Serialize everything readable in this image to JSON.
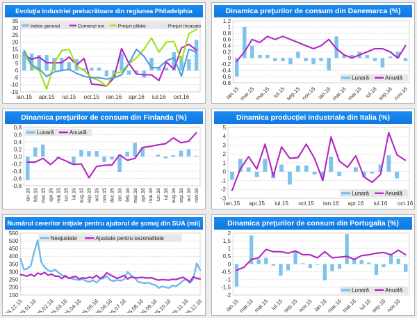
{
  "palette": {
    "title_bar_blue": "#0f79e0",
    "page_bg": "#ECECEC",
    "panel_bg": "#FFFFFF",
    "legend_bg": "#E7E7E7",
    "bar_blue": "#7FC2EC",
    "line_blue": "#4F9BD9",
    "magenta": "#B026C0",
    "lime_green": "#A2DF12",
    "pale_mint": "#C9F0DF"
  },
  "chart_data": [
    {
      "id": "philadelphia",
      "type": "bar",
      "title": "Evoluţia industriei prelucrătoare din regiunea Philadelphia",
      "ylim": [
        -15,
        35
      ],
      "ystep": 5,
      "y_ticks": [
        "35",
        "30",
        "25",
        "20",
        "15",
        "10",
        "5",
        "0",
        "-5",
        "-10",
        "-15"
      ],
      "x_label_rotation": 0,
      "x_ticks": {
        "indices": [
          0,
          3,
          6,
          9,
          12,
          15,
          18,
          21
        ],
        "labels": [
          "ian.15",
          "apr.15",
          "iul.15",
          "oct.15",
          "ian.16",
          "apr.16",
          "iul.16",
          "oct.16"
        ]
      },
      "legend_position": "top-strip",
      "series": [
        {
          "name": "Indice general",
          "type": "bar",
          "color": "#7FC2EC",
          "values": [
            13.5,
            12,
            11,
            11,
            9,
            9,
            6,
            8,
            1.5,
            2,
            2,
            -4,
            -4,
            12,
            -3,
            -2,
            -5,
            9,
            2,
            2,
            13,
            10,
            8,
            21.5
          ]
        },
        {
          "name": "Comenzi noi",
          "type": "line",
          "color": "#B026C0",
          "values": [
            11,
            8,
            9.5,
            5.5,
            5.5,
            5.5,
            9.5,
            4,
            8.5,
            -9.5,
            -10,
            -11,
            -5,
            15.5,
            5,
            -2.5,
            -3,
            -3,
            -7,
            6,
            1,
            16,
            18.5,
            14.5
          ]
        },
        {
          "name": "Preţuri plătite",
          "type": "line",
          "color": "#A2DF12",
          "values": [
            12,
            3,
            0,
            -13,
            5,
            14,
            15,
            3,
            0,
            -5,
            -7,
            -11,
            -2,
            -1,
            5,
            9,
            15,
            23,
            13,
            20,
            20.5,
            7,
            26,
            29
          ]
        },
        {
          "name": "Preţuri încasate",
          "type": "line",
          "color": "#4F9BD9",
          "legend_color": "#C9F0DF",
          "values": [
            14,
            4,
            1,
            -4,
            -1,
            0,
            1,
            -2,
            -4,
            -5,
            -5,
            -6,
            -5,
            -3,
            5,
            15,
            10,
            2,
            2,
            7,
            9,
            -4,
            15,
            13
          ]
        }
      ]
    },
    {
      "id": "danemarca",
      "type": "bar",
      "title": "Dinamica preţurilor de consum din Danemarca (%)",
      "ylim": [
        -0.8,
        1.2
      ],
      "ystep": 0.2,
      "y_ticks": [
        "1,2",
        "1",
        "0,8",
        "0,6",
        "0,4",
        "0,2",
        "0",
        "-0,2",
        "-0,4",
        "-0,6",
        "-0,8"
      ],
      "x_label_rotation": -45,
      "x_ticks": {
        "indices": [
          0,
          2,
          4,
          6,
          8,
          10,
          12,
          14,
          16,
          18,
          20,
          22
        ],
        "labels": [
          "ian.15",
          "mar.15",
          "mai.15",
          "iul.15",
          "sep.15",
          "nov.15",
          "ian.16",
          "mar.16",
          "mai.16",
          "iul.16",
          "sep.16",
          "nov.16"
        ]
      },
      "legend_position": "bottom-right",
      "series": [
        {
          "name": "Lunară",
          "type": "bar",
          "color": "#7FC2EC",
          "values": [
            -0.6,
            1.0,
            0.4,
            0.1,
            0.1,
            -0.1,
            -0.1,
            -0.2,
            0.2,
            -0.1,
            -0.2,
            -0.1,
            -0.4,
            0.7,
            0.1,
            0.1,
            0.2,
            0.1,
            -0.1,
            -0.3,
            0.05,
            0.2,
            -0.1
          ]
        },
        {
          "name": "Anuală",
          "type": "line",
          "color": "#B026C0",
          "values": [
            -0.1,
            0.2,
            0.6,
            0.5,
            0.7,
            0.6,
            0.7,
            0.6,
            0.5,
            0.4,
            0.3,
            0.4,
            0.6,
            0.3,
            0.1,
            0.0,
            0.1,
            0.2,
            0.3,
            0.3,
            0.2,
            0.0,
            0.4
          ]
        }
      ]
    },
    {
      "id": "finlanda",
      "type": "bar",
      "title": "Dinamica preţurilor de consum din Finlanda (%)",
      "ylim": [
        -0.8,
        0.8
      ],
      "ystep": 0.2,
      "y_ticks": [
        "0,8",
        "0,6",
        "0,4",
        "0,2",
        "0,0",
        "-0,2",
        "-0,4",
        "-0,6",
        "-0,8"
      ],
      "x_label_rotation": -90,
      "x_ticks": {
        "indices": [
          0,
          1,
          2,
          3,
          4,
          5,
          6,
          7,
          8,
          9,
          10,
          11,
          12,
          13,
          14,
          15,
          16,
          17,
          18,
          19,
          20,
          21,
          22
        ],
        "labels": [
          "ian.15",
          "feb.15",
          "mar.15",
          "apr.15",
          "mai.15",
          "iun.15",
          "iul.15",
          "aug.15",
          "sep.15",
          "oct.15",
          "nov.15",
          "dec.15",
          "ian.16",
          "feb.16",
          "mar.16",
          "apr.16",
          "mai.16",
          "iun.16",
          "iul.16",
          "aug.16",
          "sep.16",
          "oct.16",
          "nov.16"
        ]
      },
      "legend_position": "top-left",
      "series": [
        {
          "name": "Lunară",
          "type": "bar",
          "color": "#7FC2EC",
          "values": [
            -0.65,
            0.25,
            0.33,
            0.0,
            -0.05,
            0.0,
            -0.2,
            0.18,
            0.15,
            0.15,
            -0.15,
            -0.08,
            -0.42,
            0.13,
            0.38,
            0.25,
            0.0,
            0.05,
            -0.05,
            0.04,
            0.16,
            0.2,
            0.02
          ]
        },
        {
          "name": "Anuală",
          "type": "line",
          "color": "#B026C0",
          "values": [
            -0.15,
            -0.15,
            -0.05,
            -0.22,
            -0.03,
            -0.12,
            -0.22,
            -0.2,
            -0.58,
            -0.27,
            -0.24,
            -0.23,
            0.05,
            -0.1,
            -0.05,
            0.25,
            0.28,
            0.32,
            0.35,
            0.51,
            0.38,
            0.42,
            0.65
          ]
        }
      ]
    },
    {
      "id": "italia",
      "type": "bar",
      "title": "Dinamica producţiei industriale din Italia (%)",
      "ylim": [
        -3,
        5
      ],
      "ystep": 1,
      "y_ticks": [
        "5",
        "4",
        "3",
        "2",
        "1",
        "0",
        "-1",
        "-2",
        "-3"
      ],
      "x_label_rotation": 0,
      "x_ticks": {
        "indices": [
          0,
          3,
          6,
          9,
          12,
          15,
          18,
          21
        ],
        "labels": [
          "ian.15",
          "apr.15",
          "iul.15",
          "oct.15",
          "ian.16",
          "apr.16",
          "iul.16",
          "oct.16"
        ]
      },
      "legend_position": "bottom-right",
      "series": [
        {
          "name": "Lunară",
          "type": "bar",
          "color": "#7FC2EC",
          "values": [
            -0.9,
            1.45,
            0.5,
            -0.6,
            1.45,
            -0.75,
            0.8,
            -1.45,
            0.7,
            0.7,
            -0.3,
            -0.55,
            1.7,
            -0.5,
            0.0,
            0.5,
            -0.6,
            -0.2,
            0.8,
            1.85,
            -0.75,
            0.0
          ]
        },
        {
          "name": "Anuală",
          "type": "line",
          "color": "#B026C0",
          "values": [
            -2.1,
            0.3,
            1.7,
            0.3,
            3.1,
            -0.5,
            2.8,
            1.5,
            1.6,
            3.1,
            1.5,
            -1.0,
            3.9,
            1.2,
            0.5,
            1.8,
            -0.6,
            -1.2,
            -0.3,
            4.4,
            1.9,
            1.3
          ]
        }
      ]
    },
    {
      "id": "sua-somaj",
      "type": "line",
      "title": "Numărul cererilor iniţiale pentru ajutorul de şomaj din SUA (mii)",
      "ylim": [
        150,
        550
      ],
      "ystep": 50,
      "y_ticks": [
        "550",
        "500",
        "450",
        "400",
        "350",
        "300",
        "250",
        "200",
        "150"
      ],
      "x_label_rotation": -45,
      "x_ticks": {
        "indices": [
          0,
          4,
          9,
          13,
          17,
          22,
          26,
          30,
          35,
          39,
          43,
          48,
          52
        ],
        "labels": [
          "05.12.15",
          "05.01.16",
          "05.02.16",
          "05.03.16",
          "05.04.16",
          "05.05.16",
          "05.06.16",
          "05.07.16",
          "05.08.16",
          "05.09.16",
          "05.10.16",
          "05.11.16",
          "05.12.16"
        ]
      },
      "legend_position": "top-center",
      "series": [
        {
          "name": "Neajustate",
          "type": "line",
          "color": "#6FB9E9",
          "width": 2.4,
          "values": [
            385,
            315,
            320,
            340,
            430,
            505,
            365,
            330,
            310,
            302,
            315,
            295,
            278,
            268,
            260,
            255,
            250,
            248,
            252,
            240,
            235,
            246,
            230,
            252,
            258,
            272,
            246,
            240,
            247,
            242,
            252,
            300,
            278,
            262,
            235,
            230,
            226,
            231,
            220,
            216,
            196,
            206,
            200,
            196,
            211,
            206,
            222,
            242,
            252,
            228,
            252,
            355,
            312
          ]
        },
        {
          "name": "Ajustate pentru sezonalitate",
          "type": "line",
          "color": "#B026C0",
          "width": 2.2,
          "values": [
            282,
            277,
            272,
            284,
            272,
            292,
            284,
            296,
            278,
            285,
            272,
            272,
            256,
            276,
            258,
            266,
            270,
            254,
            262,
            258,
            266,
            260,
            277,
            258,
            268,
            294,
            280,
            268,
            258,
            266,
            277,
            254,
            266,
            262,
            262,
            264,
            262,
            260,
            262,
            252,
            246,
            250,
            248,
            246,
            252,
            250,
            258,
            265,
            251,
            235,
            268,
            258,
            254
          ]
        }
      ]
    },
    {
      "id": "portugalia",
      "type": "bar",
      "title": "Dinamica preţurilor de consum din Portugalia (%)",
      "ylim": [
        -2,
        2
      ],
      "ystep": 0.5,
      "y_ticks": [
        "2",
        "1,5",
        "1",
        "0,5",
        "0",
        "-0,5",
        "-1",
        "-1,5",
        "-2"
      ],
      "x_label_rotation": -45,
      "x_ticks": {
        "indices": [
          0,
          2,
          4,
          6,
          8,
          10,
          12,
          14,
          16,
          18,
          20,
          22
        ],
        "labels": [
          "ian.15",
          "mar.15",
          "mai.15",
          "iul.15",
          "sep.15",
          "nov.15",
          "ian.16",
          "mar.16",
          "mai.16",
          "iul.16",
          "sep.16",
          "nov.16"
        ]
      },
      "legend_position": "bottom-right",
      "series": [
        {
          "name": "Lunară",
          "type": "bar",
          "color": "#7FC2EC",
          "values": [
            -1.45,
            0.0,
            1.85,
            0.3,
            0.4,
            -0.1,
            -0.75,
            -0.4,
            0.85,
            0.05,
            -0.25,
            -0.05,
            -1.05,
            -0.45,
            -0.3,
            1.95,
            0.3,
            0.25,
            0.1,
            -0.7,
            -0.2,
            0.6,
            0.35,
            -0.5
          ]
        },
        {
          "name": "Anuală",
          "type": "line",
          "color": "#B026C0",
          "values": [
            -0.4,
            -0.2,
            0.3,
            0.4,
            0.95,
            0.8,
            0.8,
            0.7,
            0.85,
            0.6,
            0.6,
            0.4,
            0.8,
            0.4,
            0.45,
            0.5,
            0.3,
            0.55,
            0.6,
            0.7,
            0.75,
            0.6,
            0.9,
            0.6
          ]
        }
      ]
    }
  ]
}
